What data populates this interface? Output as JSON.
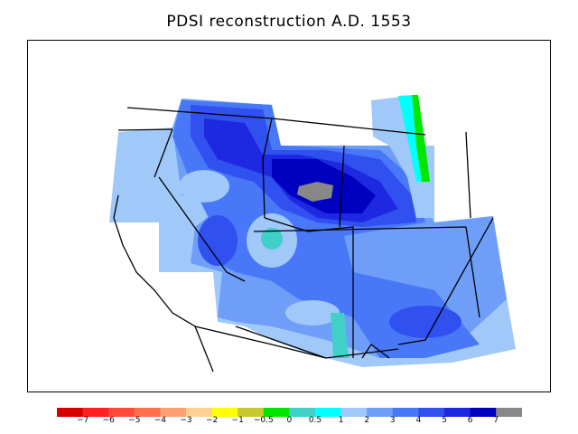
{
  "title": "PDSI reconstruction A.D. 1553",
  "legend": {
    "colors": [
      "#d40000",
      "#ff2020",
      "#ff4a3a",
      "#ff7048",
      "#ffa070",
      "#ffd090",
      "#ffff00",
      "#c8c832",
      "#00e600",
      "#40d0c8",
      "#00ffff",
      "#a0c8f8",
      "#6e9ef8",
      "#4878f8",
      "#3050f0",
      "#1e28e0",
      "#0000c0",
      "#888888"
    ],
    "labels": [
      "−7",
      "−6",
      "−5",
      "−4",
      "−3",
      "−2",
      "−1",
      "−0.5",
      "0",
      "0.5",
      "1",
      "2",
      "3",
      "4",
      "5",
      "6",
      "7"
    ]
  }
}
